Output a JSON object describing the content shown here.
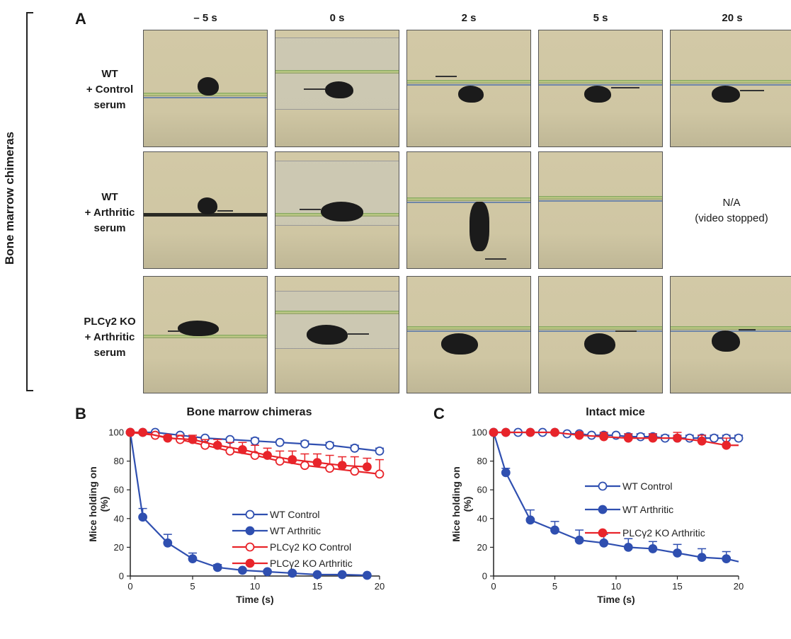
{
  "panel_a": {
    "letter": "A",
    "side_label": "Bone marrow chimeras",
    "columns": [
      "– 5 s",
      "0 s",
      "2 s",
      "5 s",
      "20 s"
    ],
    "rows": [
      {
        "label_lines": [
          "WT",
          "+ Control",
          "serum"
        ]
      },
      {
        "label_lines": [
          "WT",
          "+ Arthritic",
          "serum"
        ]
      },
      {
        "label_lines": [
          "PLCγ2 KO",
          "+ Arthritic",
          "serum"
        ]
      }
    ],
    "na_lines": [
      "N/A",
      "(video stopped)"
    ]
  },
  "chart_data": [
    {
      "type": "line",
      "letter": "B",
      "title": "Bone marrow chimeras",
      "xlabel": "Time (s)",
      "ylabel_lines": [
        "Mice holding on",
        "(%)"
      ],
      "xlim": [
        0,
        20
      ],
      "ylim": [
        0,
        100
      ],
      "xticks": [
        0,
        5,
        10,
        15,
        20
      ],
      "yticks": [
        0,
        20,
        40,
        60,
        80,
        100
      ],
      "legend_position": "center-right",
      "series": [
        {
          "name": "WT Control",
          "color": "#2f4fb0",
          "filled": false,
          "x": [
            0,
            1,
            2,
            4,
            6,
            8,
            10,
            12,
            14,
            16,
            18,
            20
          ],
          "y": [
            100,
            100,
            100,
            98,
            96,
            95,
            94,
            93,
            92,
            91,
            89,
            87
          ],
          "err": [
            0,
            0,
            0,
            1,
            1,
            1,
            2,
            1,
            2,
            2,
            2,
            2
          ]
        },
        {
          "name": "WT Arthritic",
          "color": "#2f4fb0",
          "filled": true,
          "x": [
            0,
            1,
            3,
            5,
            7,
            9,
            11,
            13,
            15,
            17,
            19
          ],
          "y": [
            100,
            41,
            23,
            12,
            6,
            4,
            3,
            2,
            1,
            1,
            0.5
          ],
          "err": [
            0,
            6,
            6,
            4,
            2,
            1,
            1,
            1,
            0.5,
            0.5,
            0.3
          ]
        },
        {
          "name": "PLCγ2 KO Control",
          "color": "#e8242a",
          "filled": false,
          "x": [
            0,
            2,
            4,
            6,
            8,
            10,
            12,
            14,
            16,
            18,
            20
          ],
          "y": [
            100,
            98,
            95,
            91,
            87,
            84,
            80,
            77,
            75,
            73,
            71
          ],
          "err": [
            0,
            1,
            3,
            4,
            6,
            7,
            7,
            8,
            9,
            10,
            10
          ]
        },
        {
          "name": "PLCγ2 KO Arthritic",
          "color": "#e8242a",
          "filled": true,
          "x": [
            0,
            1,
            3,
            5,
            7,
            9,
            11,
            13,
            15,
            17,
            19
          ],
          "y": [
            100,
            100,
            96,
            95,
            91,
            88,
            84,
            81,
            79,
            77,
            76
          ],
          "err": [
            0,
            0,
            2,
            3,
            4,
            5,
            5,
            6,
            6,
            6,
            6
          ]
        }
      ]
    },
    {
      "type": "line",
      "letter": "C",
      "title": "Intact mice",
      "xlabel": "Time (s)",
      "ylabel_lines": [
        "Mice holding on",
        "(%)"
      ],
      "xlim": [
        0,
        20
      ],
      "ylim": [
        0,
        100
      ],
      "xticks": [
        0,
        5,
        10,
        15,
        20
      ],
      "yticks": [
        0,
        20,
        40,
        60,
        80,
        100
      ],
      "legend_position": "center-right",
      "series": [
        {
          "name": "WT Control",
          "color": "#2f4fb0",
          "filled": false,
          "x": [
            0,
            1,
            2,
            3,
            4,
            5,
            6,
            7,
            8,
            9,
            10,
            11,
            12,
            13,
            14,
            15,
            16,
            17,
            18,
            19,
            20
          ],
          "y": [
            100,
            100,
            100,
            100,
            100,
            100,
            99,
            99,
            98,
            98,
            98,
            97,
            97,
            97,
            96,
            96,
            96,
            96,
            96,
            96,
            96
          ],
          "err": [
            0,
            0,
            0,
            0,
            0,
            0,
            1,
            1,
            1,
            1,
            1,
            2,
            2,
            2,
            2,
            2,
            2,
            2,
            2,
            2,
            2
          ]
        },
        {
          "name": "WT Arthritic",
          "color": "#2f4fb0",
          "filled": true,
          "x": [
            0,
            1,
            3,
            5,
            7,
            9,
            11,
            13,
            15,
            17,
            19,
            20
          ],
          "y": [
            100,
            72,
            39,
            32,
            25,
            23,
            20,
            19,
            16,
            13,
            12,
            10
          ],
          "err": [
            0,
            3,
            7,
            6,
            7,
            6,
            6,
            5,
            6,
            6,
            5,
            0
          ]
        },
        {
          "name": "PLCγ2 KO Arthritic",
          "color": "#e8242a",
          "filled": true,
          "x": [
            0,
            1,
            3,
            5,
            7,
            9,
            11,
            13,
            15,
            17,
            19,
            20
          ],
          "y": [
            100,
            100,
            100,
            100,
            98,
            97,
            96,
            96,
            96,
            94,
            91,
            91
          ],
          "err": [
            0,
            0,
            0,
            0,
            2,
            3,
            3,
            3,
            4,
            4,
            5,
            0
          ]
        }
      ]
    }
  ]
}
